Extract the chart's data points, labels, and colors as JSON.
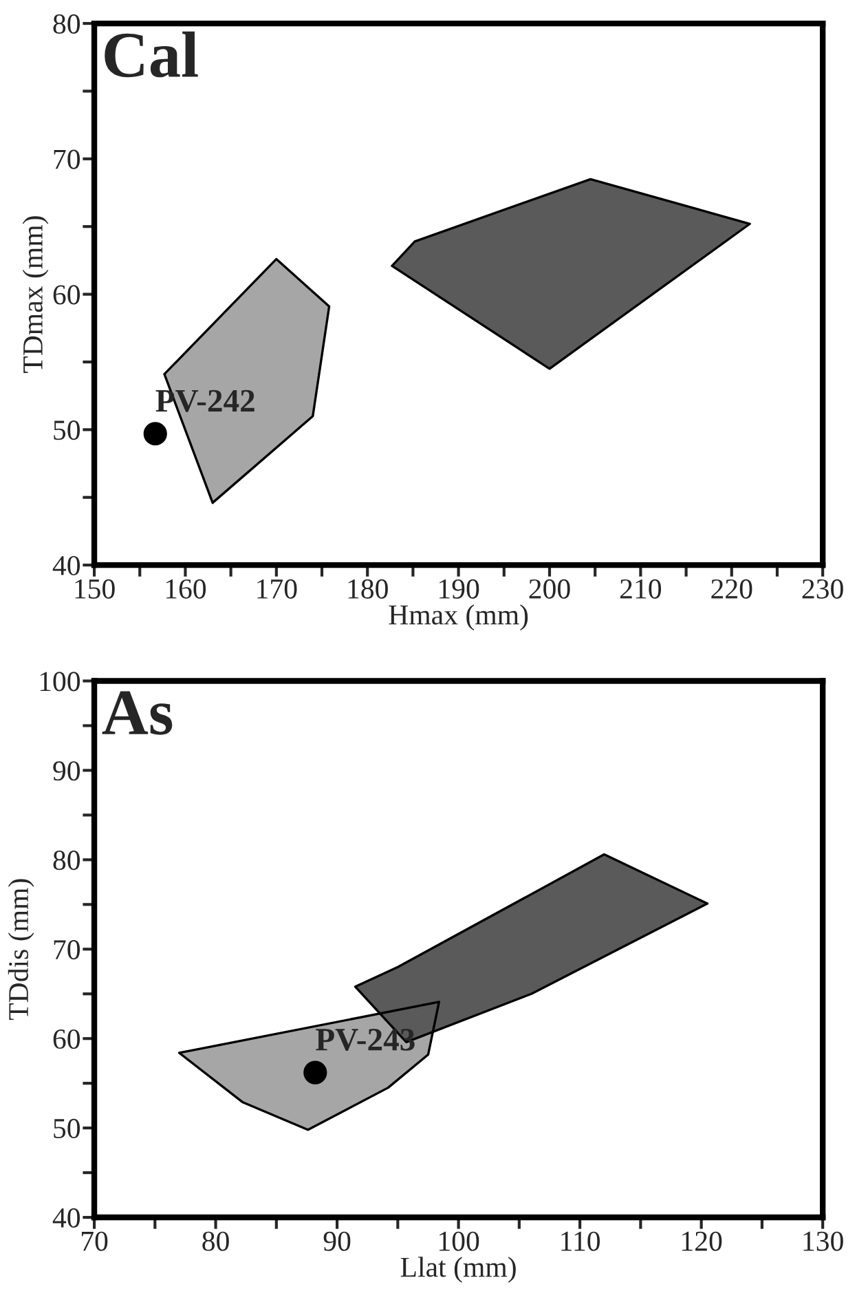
{
  "chart_data": [
    {
      "type": "scatter",
      "title": "Cal",
      "xlabel": "Hmax (mm)",
      "ylabel": "TDmax (mm)",
      "xlim": [
        150,
        230
      ],
      "ylim": [
        40,
        80
      ],
      "xticks": [
        150,
        {
          "value": 155,
          "label": null
        },
        160,
        {
          "value": 165,
          "label": null
        },
        170,
        {
          "value": 175,
          "label": null
        },
        180,
        {
          "value": 185,
          "label": null
        },
        190,
        {
          "value": 195,
          "label": null
        },
        200,
        {
          "value": 205,
          "label": null
        },
        210,
        {
          "value": 215,
          "label": null
        },
        220,
        {
          "value": 225,
          "label": null
        },
        230
      ],
      "yticks": [
        40,
        {
          "value": 45,
          "label": null
        },
        50,
        {
          "value": 55,
          "label": null
        },
        60,
        {
          "value": 65,
          "label": null
        },
        70,
        {
          "value": 75,
          "label": null
        },
        80
      ],
      "series": [
        {
          "type": "area",
          "color": "#a6a6a6",
          "x": [
            157.7,
            170,
            175.8,
            174,
            163,
            157.7
          ],
          "values": [
            54.1,
            62.6,
            59.1,
            51,
            44.6,
            54.1
          ]
        },
        {
          "type": "area",
          "color": "#5a5a5a",
          "x": [
            182.7,
            185.2,
            204.5,
            222,
            200,
            182.7
          ],
          "values": [
            62.1,
            63.9,
            68.5,
            65.2,
            54.5,
            62.1
          ]
        },
        {
          "color": "#000000",
          "marker": "circle",
          "x": [
            156.7
          ],
          "values": [
            49.7
          ]
        }
      ],
      "annotations": [
        {
          "text": "PV-242",
          "x": 156.7,
          "y": 49.7
        }
      ]
    },
    {
      "type": "scatter",
      "title": "As",
      "xlabel": "Llat (mm)",
      "ylabel": "TDdis (mm)",
      "xlim": [
        70,
        130
      ],
      "ylim": [
        40,
        100
      ],
      "xticks": [
        70,
        {
          "value": 75,
          "label": null
        },
        80,
        {
          "value": 85,
          "label": null
        },
        90,
        {
          "value": 95,
          "label": null
        },
        100,
        {
          "value": 105,
          "label": null
        },
        110,
        {
          "value": 115,
          "label": null
        },
        120,
        {
          "value": 125,
          "label": null
        },
        130
      ],
      "yticks": [
        40,
        {
          "value": 45,
          "label": null
        },
        50,
        {
          "value": 55,
          "label": null
        },
        60,
        {
          "value": 65,
          "label": null
        },
        70,
        {
          "value": 75,
          "label": null
        },
        80,
        {
          "value": 85,
          "label": null
        },
        90,
        {
          "value": 95,
          "label": null
        },
        100
      ],
      "series": [
        {
          "type": "area",
          "color": "#a6a6a6",
          "x": [
            77,
            98.4,
            97.5,
            94.2,
            87.6,
            82.2,
            77
          ],
          "values": [
            58.4,
            64.1,
            58.2,
            54.5,
            49.8,
            52.9,
            58.4
          ]
        },
        {
          "type": "area",
          "color": "#5a5a5a",
          "x": [
            91.5,
            95,
            112,
            120.5,
            106,
            95.7,
            91.5
          ],
          "values": [
            65.8,
            68,
            80.6,
            75.1,
            65,
            59.6,
            65.8
          ]
        },
        {
          "color": "#000000",
          "marker": "circle",
          "x": [
            88.2
          ],
          "values": [
            56.2
          ]
        }
      ],
      "annotations": [
        {
          "text": "PV-243",
          "x": 88.2,
          "y": 56.2
        }
      ]
    }
  ]
}
